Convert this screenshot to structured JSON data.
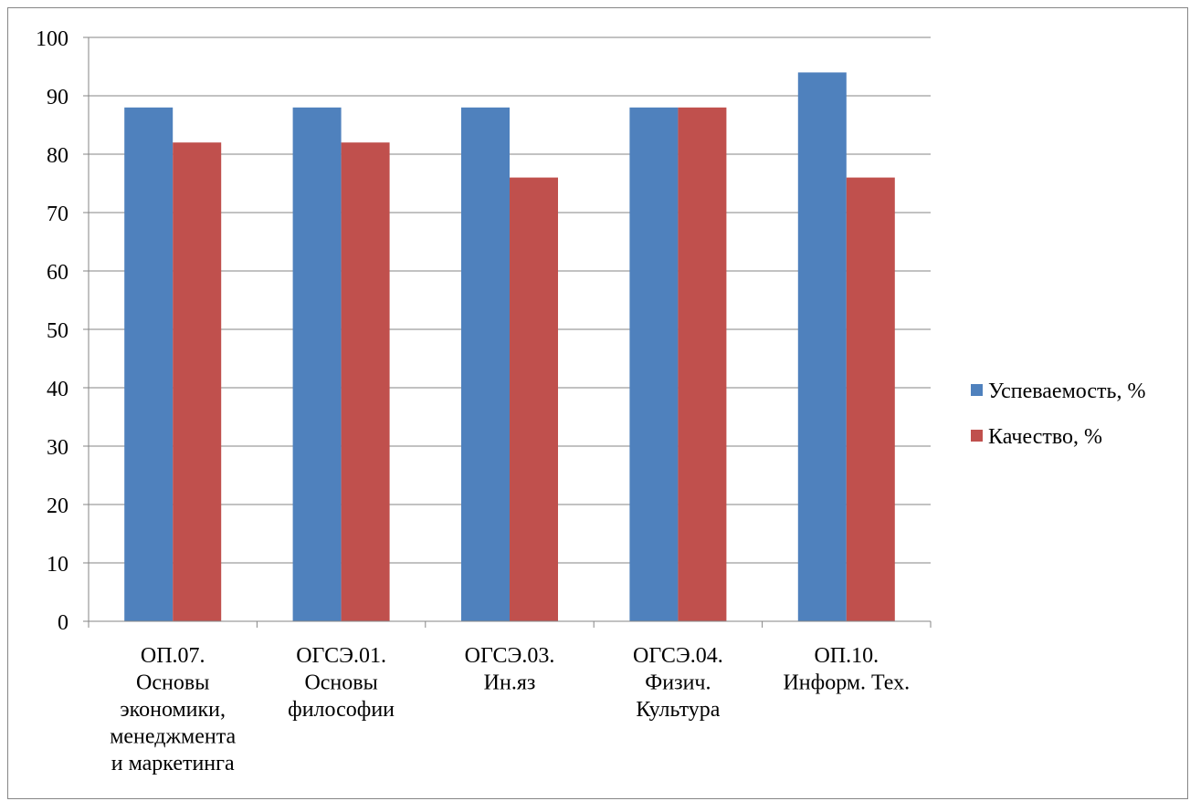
{
  "chart_data": {
    "type": "bar",
    "categories": [
      [
        "ОП.07.",
        "Основы",
        "экономики,",
        "менеджмента",
        "и маркетинга"
      ],
      [
        "ОГСЭ.01.",
        "Основы",
        "философии"
      ],
      [
        "ОГСЭ.03.",
        "Ин.яз"
      ],
      [
        "ОГСЭ.04.",
        "Физич.",
        "Культура"
      ],
      [
        "ОП.10.",
        "Информ. Тех."
      ]
    ],
    "series": [
      {
        "name": "Успеваемость, %",
        "color": "#4f81bd",
        "values": [
          88,
          88,
          88,
          88,
          94
        ]
      },
      {
        "name": "Качество, %",
        "color": "#c0504d",
        "values": [
          82,
          82,
          76,
          88,
          76
        ]
      }
    ],
    "ylim": [
      0,
      100
    ],
    "yticks": [
      0,
      10,
      20,
      30,
      40,
      50,
      60,
      70,
      80,
      90,
      100
    ],
    "grid": true,
    "legend_position": "right"
  }
}
